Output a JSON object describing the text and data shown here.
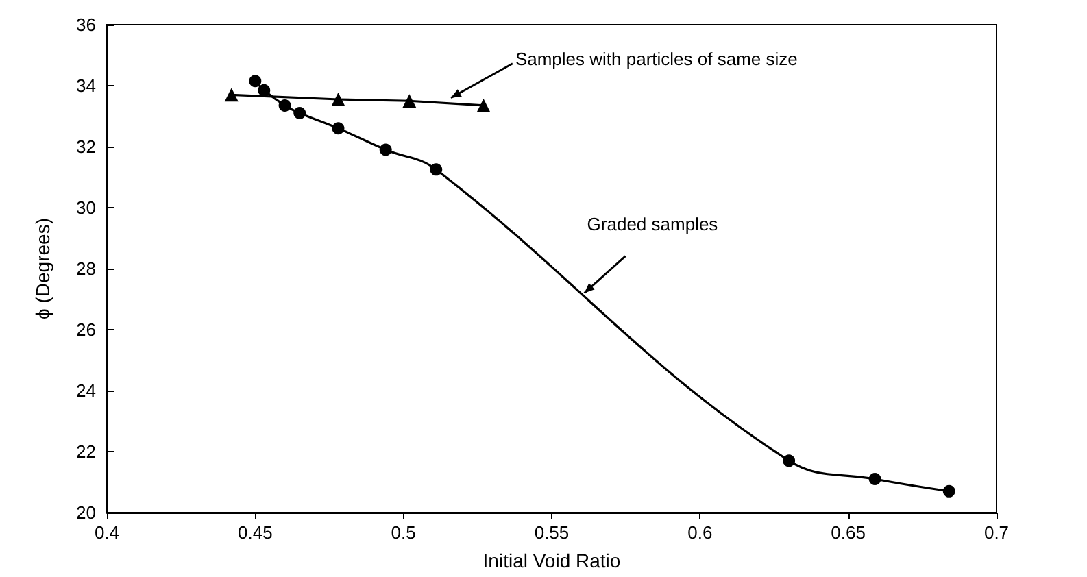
{
  "chart_data": {
    "type": "line",
    "xlabel": "Initial Void Ratio",
    "ylabel": "ϕ (Degrees)",
    "xlim": [
      0.4,
      0.7
    ],
    "xticks": [
      0.4,
      0.45,
      0.5,
      0.55,
      0.6,
      0.65,
      0.7
    ],
    "ylim": [
      20,
      36
    ],
    "yticks": [
      20,
      22,
      24,
      26,
      28,
      30,
      32,
      34,
      36
    ],
    "grid": false,
    "line_style": "solid",
    "series": [
      {
        "color": "#000000",
        "marker": "circle",
        "x": [
          0.45,
          0.453,
          0.46,
          0.465,
          0.478,
          0.494,
          0.511,
          0.63,
          0.659,
          0.684
        ],
        "values": [
          34.15,
          33.85,
          33.35,
          33.1,
          32.6,
          31.9,
          31.25,
          21.7,
          21.1,
          20.7
        ]
      },
      {
        "color": "#000000",
        "marker": "triangle",
        "x": [
          0.442,
          0.478,
          0.502,
          0.527
        ],
        "values": [
          33.7,
          33.55,
          33.5,
          33.35
        ]
      }
    ],
    "annotations": [
      {
        "text": "Samples with particles of same size",
        "x": 0.516,
        "y": 33.6
      },
      {
        "text": "Graded samples",
        "x": 0.561,
        "y": 27.2
      }
    ]
  }
}
